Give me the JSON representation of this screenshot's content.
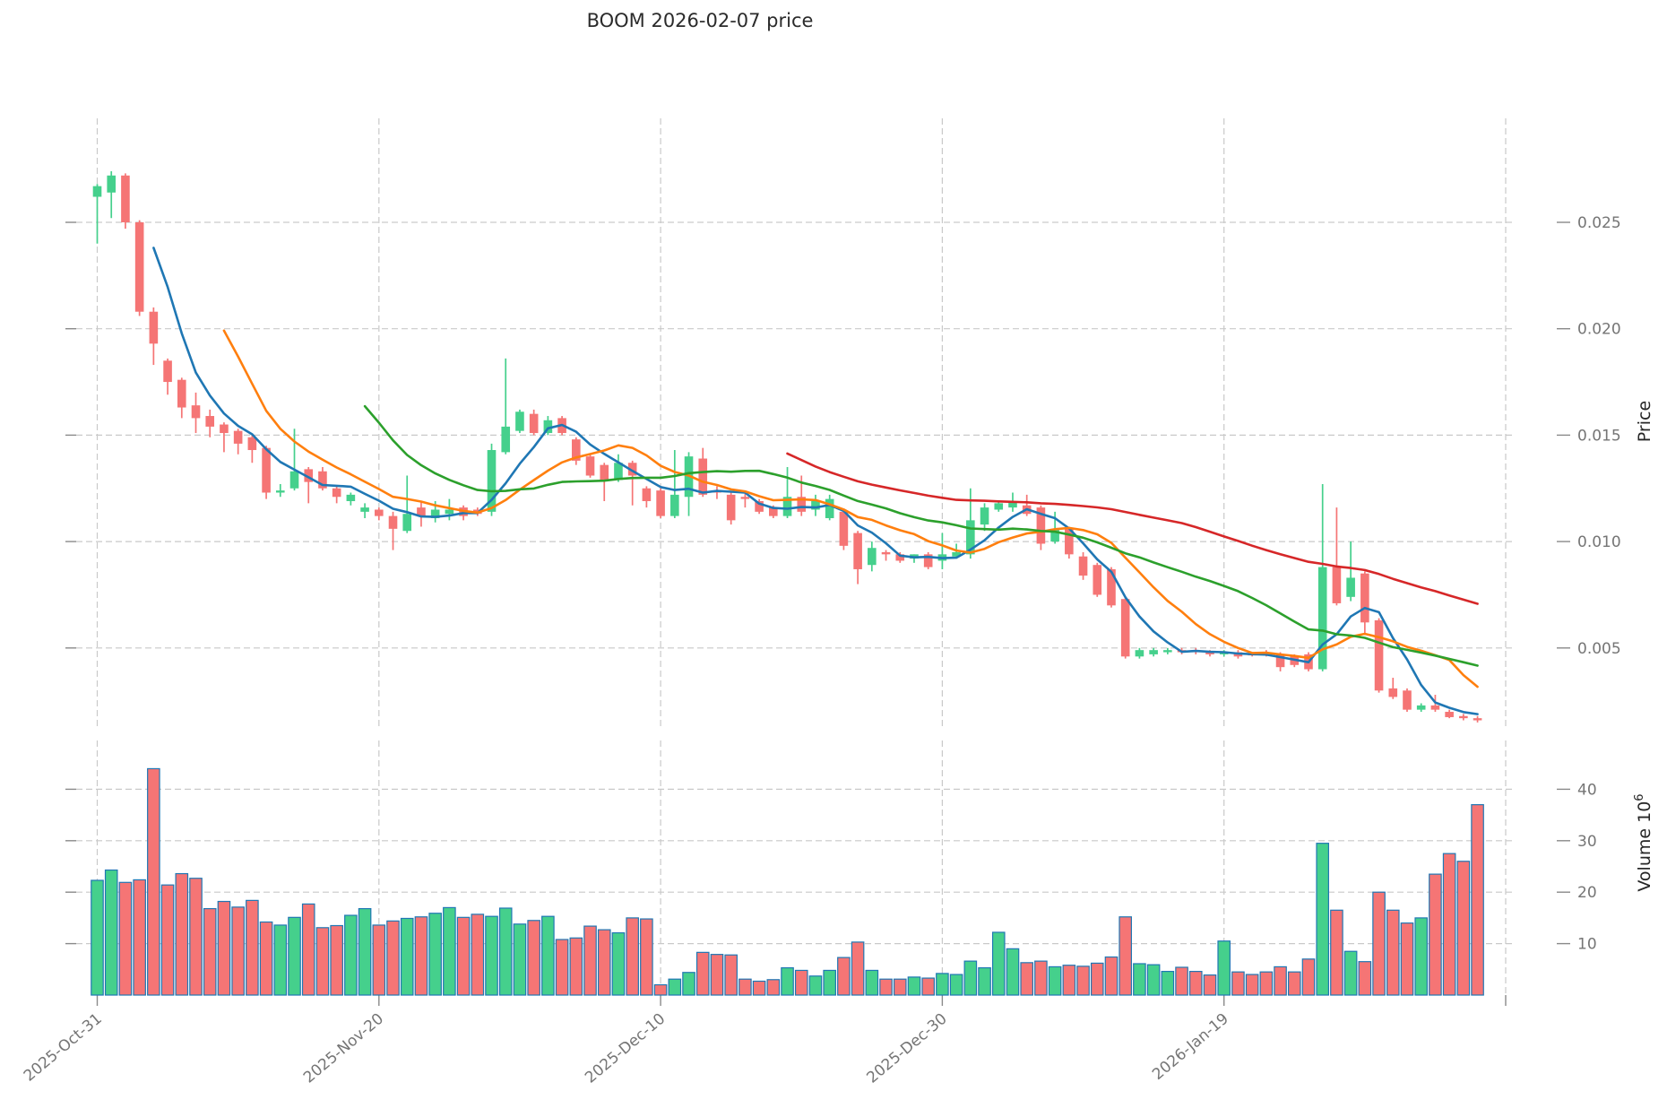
{
  "title": "BOOM  2026-02-07  price",
  "price_axis": {
    "label": "Price",
    "ticks": [
      {
        "value": 0.025,
        "label": "0.025"
      },
      {
        "value": 0.02,
        "label": "0.020"
      },
      {
        "value": 0.015,
        "label": "0.015"
      },
      {
        "value": 0.01,
        "label": "0.010"
      },
      {
        "value": 0.005,
        "label": "0.005"
      }
    ]
  },
  "volume_axis": {
    "label_base": "Volume 10",
    "label_exponent": "6",
    "unit": "1e6",
    "ticks": [
      {
        "value": 40,
        "label": "40"
      },
      {
        "value": 30,
        "label": "30"
      },
      {
        "value": 20,
        "label": "20"
      },
      {
        "value": 10,
        "label": "10"
      }
    ]
  },
  "x_axis": {
    "labeled_ticks": [
      {
        "index": 0,
        "label": "2025-Oct-31"
      },
      {
        "index": 20,
        "label": "2025-Nov-20"
      },
      {
        "index": 40,
        "label": "2025-Dec-10"
      },
      {
        "index": 60,
        "label": "2025-Dec-30"
      },
      {
        "index": 80,
        "label": "2026-Jan-19"
      }
    ],
    "gridline_indices": [
      0,
      20,
      40,
      60,
      80,
      100
    ]
  },
  "colors": {
    "up": "#45d08c",
    "down": "#f57575",
    "volume_edge": "#2077b4",
    "mav_colors": [
      "#1f77b4",
      "#ff7f0e",
      "#2ca02c",
      "#d62728"
    ],
    "grid": "#c9c9c9",
    "tick_text": "#757575"
  },
  "chart_data": {
    "type": "candlestick",
    "subcharts": [
      "price_with_mav_overlays",
      "volume_bars"
    ],
    "title": "BOOM  2026-02-07  price",
    "ylabel": "Price",
    "ylabel_volume": "Volume 10^6",
    "price_ylim": [
      0.00124,
      0.03
    ],
    "volume_ylim": [
      0,
      49.5
    ],
    "grid": true,
    "mav_periods": [
      5,
      10,
      20,
      50
    ],
    "dates": [
      "2025-10-31",
      "2025-11-01",
      "2025-11-02",
      "2025-11-03",
      "2025-11-04",
      "2025-11-05",
      "2025-11-06",
      "2025-11-07",
      "2025-11-08",
      "2025-11-09",
      "2025-11-10",
      "2025-11-11",
      "2025-11-12",
      "2025-11-13",
      "2025-11-14",
      "2025-11-15",
      "2025-11-16",
      "2025-11-17",
      "2025-11-18",
      "2025-11-19",
      "2025-11-20",
      "2025-11-21",
      "2025-11-22",
      "2025-11-23",
      "2025-11-24",
      "2025-11-25",
      "2025-11-26",
      "2025-11-27",
      "2025-11-28",
      "2025-11-29",
      "2025-11-30",
      "2025-12-01",
      "2025-12-02",
      "2025-12-03",
      "2025-12-04",
      "2025-12-05",
      "2025-12-06",
      "2025-12-07",
      "2025-12-08",
      "2025-12-09",
      "2025-12-10",
      "2025-12-11",
      "2025-12-12",
      "2025-12-13",
      "2025-12-14",
      "2025-12-15",
      "2025-12-16",
      "2025-12-17",
      "2025-12-18",
      "2025-12-19",
      "2025-12-20",
      "2025-12-21",
      "2025-12-22",
      "2025-12-23",
      "2025-12-24",
      "2025-12-25",
      "2025-12-26",
      "2025-12-27",
      "2025-12-28",
      "2025-12-29",
      "2025-12-30",
      "2025-12-31",
      "2026-01-01",
      "2026-01-02",
      "2026-01-03",
      "2026-01-04",
      "2026-01-05",
      "2026-01-06",
      "2026-01-07",
      "2026-01-08",
      "2026-01-09",
      "2026-01-10",
      "2026-01-11",
      "2026-01-12",
      "2026-01-13",
      "2026-01-14",
      "2026-01-15",
      "2026-01-16",
      "2026-01-17",
      "2026-01-18",
      "2026-01-19",
      "2026-01-20",
      "2026-01-21",
      "2026-01-22",
      "2026-01-23",
      "2026-01-24",
      "2026-01-25",
      "2026-01-26",
      "2026-01-27",
      "2026-01-28",
      "2026-01-29",
      "2026-01-30",
      "2026-01-31",
      "2026-02-01",
      "2026-02-02",
      "2026-02-03",
      "2026-02-04",
      "2026-02-05",
      "2026-02-06"
    ],
    "ohlcv_columns": [
      "open",
      "high",
      "low",
      "close",
      "volume_millions"
    ],
    "ohlcv": [
      [
        0.0262,
        0.0268,
        0.024,
        0.0267,
        22.3
      ],
      [
        0.0264,
        0.0274,
        0.0252,
        0.0272,
        24.3
      ],
      [
        0.0272,
        0.0273,
        0.0247,
        0.025,
        21.9
      ],
      [
        0.025,
        0.0251,
        0.0206,
        0.0208,
        22.4
      ],
      [
        0.0208,
        0.021,
        0.0183,
        0.0193,
        44.0
      ],
      [
        0.0185,
        0.0186,
        0.0169,
        0.0175,
        21.4
      ],
      [
        0.0176,
        0.0177,
        0.0158,
        0.0163,
        23.6
      ],
      [
        0.0164,
        0.017,
        0.0151,
        0.0158,
        22.7
      ],
      [
        0.0159,
        0.0162,
        0.0149,
        0.0154,
        16.8
      ],
      [
        0.0155,
        0.0156,
        0.0142,
        0.0151,
        18.2
      ],
      [
        0.0152,
        0.0153,
        0.0141,
        0.0146,
        17.1
      ],
      [
        0.0149,
        0.015,
        0.0137,
        0.0143,
        18.4
      ],
      [
        0.0144,
        0.0145,
        0.012,
        0.0123,
        14.2
      ],
      [
        0.0123,
        0.0127,
        0.0121,
        0.0124,
        13.6
      ],
      [
        0.0125,
        0.0153,
        0.0124,
        0.0133,
        15.1
      ],
      [
        0.0134,
        0.0135,
        0.0118,
        0.0128,
        17.7
      ],
      [
        0.0133,
        0.0135,
        0.0124,
        0.0125,
        13.1
      ],
      [
        0.0125,
        0.0126,
        0.0118,
        0.0121,
        13.5
      ],
      [
        0.0119,
        0.0123,
        0.0117,
        0.0122,
        15.5
      ],
      [
        0.0114,
        0.0118,
        0.0111,
        0.0116,
        16.8
      ],
      [
        0.0115,
        0.0116,
        0.011,
        0.0112,
        13.6
      ],
      [
        0.0112,
        0.0114,
        0.0096,
        0.0106,
        14.4
      ],
      [
        0.0105,
        0.0131,
        0.0104,
        0.0113,
        14.9
      ],
      [
        0.0116,
        0.0119,
        0.0107,
        0.0112,
        15.2
      ],
      [
        0.0111,
        0.0119,
        0.0109,
        0.0115,
        15.9
      ],
      [
        0.0113,
        0.012,
        0.011,
        0.0115,
        17.0
      ],
      [
        0.0116,
        0.0117,
        0.011,
        0.0112,
        15.1
      ],
      [
        0.0115,
        0.0116,
        0.0112,
        0.0113,
        15.7
      ],
      [
        0.0114,
        0.0146,
        0.0112,
        0.0143,
        15.3
      ],
      [
        0.0142,
        0.0186,
        0.0141,
        0.0154,
        16.9
      ],
      [
        0.0152,
        0.0162,
        0.0151,
        0.0161,
        13.8
      ],
      [
        0.016,
        0.0162,
        0.015,
        0.0151,
        14.5
      ],
      [
        0.0151,
        0.0159,
        0.015,
        0.0157,
        15.3
      ],
      [
        0.0158,
        0.0159,
        0.015,
        0.0151,
        10.8
      ],
      [
        0.0148,
        0.0149,
        0.0136,
        0.0138,
        11.1
      ],
      [
        0.014,
        0.0141,
        0.013,
        0.0131,
        13.4
      ],
      [
        0.0136,
        0.0137,
        0.0119,
        0.0129,
        12.7
      ],
      [
        0.0129,
        0.0141,
        0.0128,
        0.0137,
        12.1
      ],
      [
        0.0137,
        0.0138,
        0.0117,
        0.0131,
        15.0
      ],
      [
        0.0125,
        0.0126,
        0.0116,
        0.0119,
        14.8
      ],
      [
        0.0124,
        0.0125,
        0.0111,
        0.0112,
        2.0
      ],
      [
        0.0112,
        0.0143,
        0.0111,
        0.0122,
        3.1
      ],
      [
        0.0121,
        0.0142,
        0.0112,
        0.014,
        4.4
      ],
      [
        0.0139,
        0.0144,
        0.0121,
        0.0122,
        8.3
      ],
      [
        0.0124,
        0.0126,
        0.012,
        0.0123,
        7.9
      ],
      [
        0.0122,
        0.0123,
        0.0108,
        0.011,
        7.8
      ],
      [
        0.0121,
        0.0123,
        0.0116,
        0.012,
        3.1
      ],
      [
        0.0119,
        0.012,
        0.0113,
        0.0114,
        2.7
      ],
      [
        0.0116,
        0.0117,
        0.0111,
        0.0112,
        3.0
      ],
      [
        0.0112,
        0.0135,
        0.0111,
        0.0121,
        5.3
      ],
      [
        0.0121,
        0.0131,
        0.0112,
        0.0114,
        4.8
      ],
      [
        0.0115,
        0.0122,
        0.0112,
        0.0119,
        3.7
      ],
      [
        0.0111,
        0.0122,
        0.011,
        0.012,
        4.8
      ],
      [
        0.0114,
        0.0115,
        0.0096,
        0.0098,
        7.3
      ],
      [
        0.0104,
        0.0105,
        0.008,
        0.0087,
        10.3
      ],
      [
        0.0089,
        0.01,
        0.0086,
        0.0097,
        4.8
      ],
      [
        0.0095,
        0.0096,
        0.0091,
        0.0094,
        3.1
      ],
      [
        0.0094,
        0.0095,
        0.009,
        0.0091,
        3.1
      ],
      [
        0.0092,
        0.0094,
        0.009,
        0.0094,
        3.5
      ],
      [
        0.0094,
        0.0095,
        0.0087,
        0.0088,
        3.3
      ],
      [
        0.0091,
        0.0104,
        0.0087,
        0.0094,
        4.2
      ],
      [
        0.0093,
        0.0099,
        0.0092,
        0.0095,
        4.0
      ],
      [
        0.0094,
        0.0125,
        0.0092,
        0.011,
        6.6
      ],
      [
        0.0108,
        0.0118,
        0.0105,
        0.0116,
        5.3
      ],
      [
        0.0115,
        0.0119,
        0.0114,
        0.0118,
        12.2
      ],
      [
        0.0116,
        0.0123,
        0.0114,
        0.0119,
        9.0
      ],
      [
        0.0117,
        0.0122,
        0.0112,
        0.0113,
        6.3
      ],
      [
        0.0116,
        0.0117,
        0.0096,
        0.0099,
        6.6
      ],
      [
        0.01,
        0.0114,
        0.0099,
        0.0106,
        5.5
      ],
      [
        0.0106,
        0.0107,
        0.0092,
        0.0094,
        5.8
      ],
      [
        0.0093,
        0.0095,
        0.0082,
        0.0084,
        5.6
      ],
      [
        0.0089,
        0.009,
        0.0074,
        0.0075,
        6.2
      ],
      [
        0.0087,
        0.0088,
        0.0069,
        0.007,
        7.4
      ],
      [
        0.0073,
        0.0074,
        0.0045,
        0.0046,
        15.2
      ],
      [
        0.0046,
        0.005,
        0.0045,
        0.0049,
        6.1
      ],
      [
        0.0047,
        0.005,
        0.0046,
        0.0049,
        5.9
      ],
      [
        0.0048,
        0.005,
        0.0047,
        0.0049,
        4.6
      ],
      [
        0.0049,
        0.005,
        0.0047,
        0.0048,
        5.4
      ],
      [
        0.0049,
        0.005,
        0.0047,
        0.0048,
        4.6
      ],
      [
        0.0048,
        0.0049,
        0.0046,
        0.0047,
        3.9
      ],
      [
        0.0047,
        0.0049,
        0.0046,
        0.0048,
        10.5
      ],
      [
        0.0048,
        0.0049,
        0.0045,
        0.0046,
        4.5
      ],
      [
        0.00475,
        0.0048,
        0.0046,
        0.00465,
        4.0
      ],
      [
        0.0048,
        0.0049,
        0.0046,
        0.0047,
        4.5
      ],
      [
        0.0047,
        0.0048,
        0.0039,
        0.0041,
        5.5
      ],
      [
        0.0046,
        0.0047,
        0.0041,
        0.0042,
        4.5
      ],
      [
        0.0047,
        0.0048,
        0.0039,
        0.004,
        7.0
      ],
      [
        0.004,
        0.0127,
        0.0039,
        0.0088,
        29.5
      ],
      [
        0.0088,
        0.0116,
        0.007,
        0.0071,
        16.5
      ],
      [
        0.0074,
        0.01,
        0.0072,
        0.0083,
        8.5
      ],
      [
        0.0085,
        0.0086,
        0.0056,
        0.0062,
        6.5
      ],
      [
        0.0063,
        0.0064,
        0.0029,
        0.003,
        20.0
      ],
      [
        0.0031,
        0.0036,
        0.0026,
        0.0027,
        16.5
      ],
      [
        0.003,
        0.0031,
        0.002,
        0.0021,
        14.0
      ],
      [
        0.0021,
        0.0024,
        0.002,
        0.0023,
        15.0
      ],
      [
        0.0023,
        0.0028,
        0.002,
        0.0021,
        23.5
      ],
      [
        0.002,
        0.0021,
        0.0017,
        0.00175,
        27.5
      ],
      [
        0.0018,
        0.0019,
        0.0016,
        0.0017,
        26.0
      ],
      [
        0.0017,
        0.0018,
        0.0015,
        0.0016,
        37.0
      ]
    ]
  }
}
